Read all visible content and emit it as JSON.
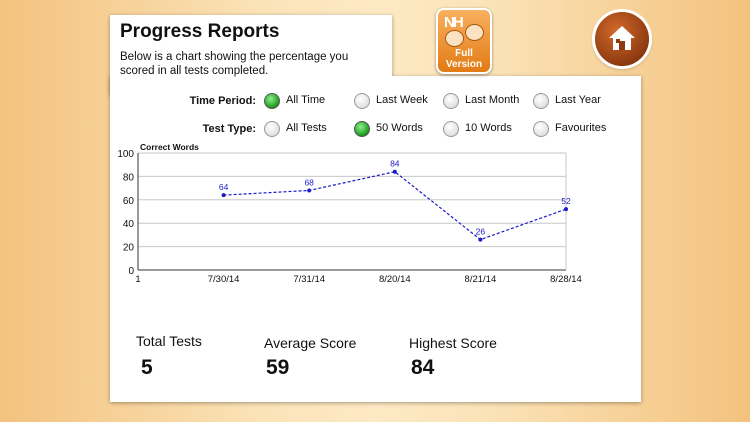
{
  "header": {
    "title": "Progress Reports",
    "subtitle": "Below is a chart showing the percentage you scored in all tests completed."
  },
  "badge": {
    "logo": "NH",
    "line1": "Full",
    "line2": "Version"
  },
  "home_button": {
    "icon": "home-icon"
  },
  "filters": {
    "time_period": {
      "label": "Time Period:",
      "options": [
        "All Time",
        "Last Week",
        "Last Month",
        "Last Year"
      ],
      "selected": "All Time"
    },
    "test_type": {
      "label": "Test Type:",
      "options": [
        "All Tests",
        "50 Words",
        "10 Words",
        "Favourites"
      ],
      "selected": "50 Words"
    }
  },
  "chart_data": {
    "type": "line",
    "title": "",
    "ylabel": "Correct Words",
    "xlabel": "",
    "categories": [
      "1",
      "7/30/14",
      "7/31/14",
      "8/20/14",
      "8/21/14",
      "8/28/14"
    ],
    "series": [
      {
        "values": [
          null,
          64,
          68,
          84,
          26,
          52
        ]
      }
    ],
    "ylim": [
      0,
      100
    ],
    "yticks": [
      0,
      20,
      40,
      60,
      80,
      100
    ],
    "grid": true,
    "line_color": "#1a1acc",
    "line_style": "dashed"
  },
  "stats": {
    "total_tests": {
      "label": "Total Tests",
      "value": "5"
    },
    "average_score": {
      "label": "Average Score",
      "value": "59"
    },
    "highest_score": {
      "label": "Highest Score",
      "value": "84"
    }
  }
}
